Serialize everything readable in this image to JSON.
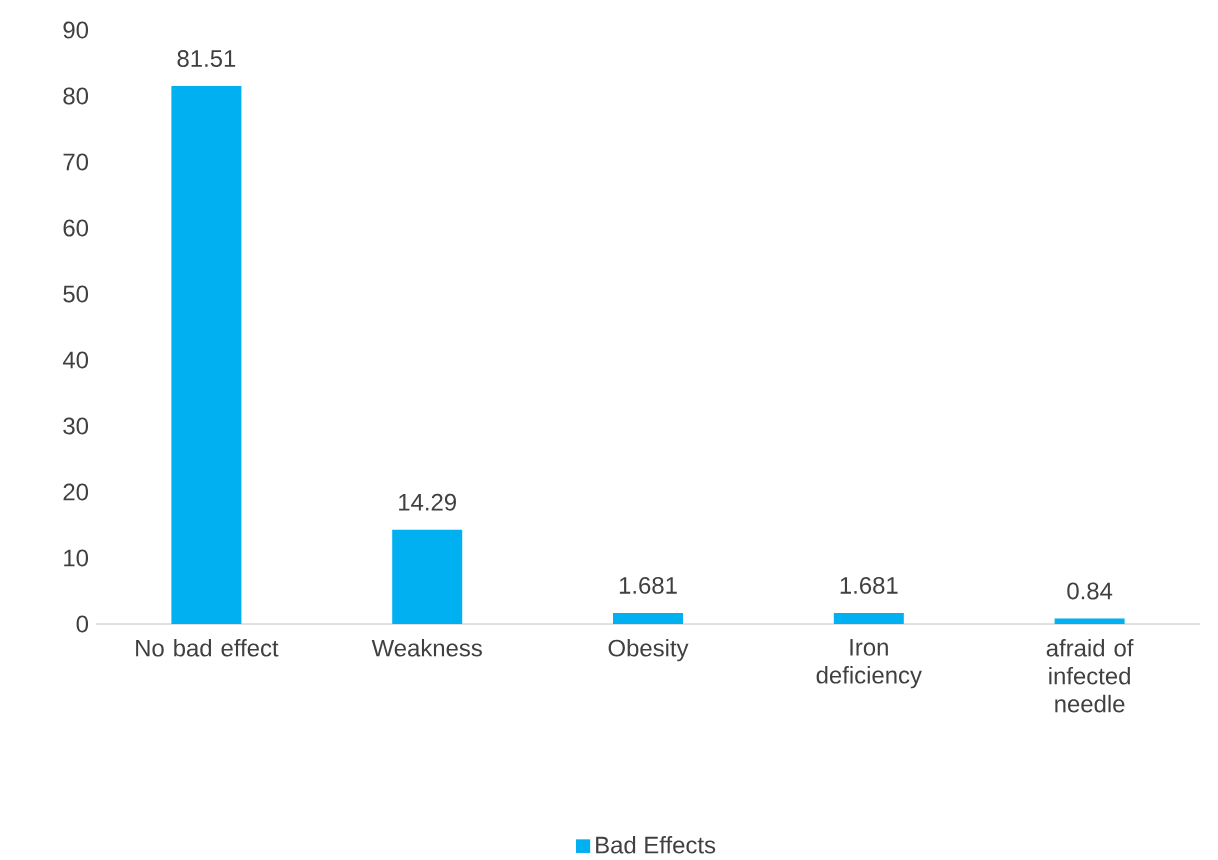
{
  "chart_data": {
    "type": "bar",
    "categories": [
      "No bad effect",
      "Weakness",
      "Obesity",
      "Iron deficiency",
      "afraid of infected needle"
    ],
    "series": [
      {
        "name": "Bad Effects",
        "color": "#00b0f0",
        "values": [
          81.51,
          14.29,
          1.681,
          1.681,
          0.84
        ],
        "value_labels": [
          "81.51",
          "14.29",
          "1.681",
          "1.681",
          "0.84"
        ]
      }
    ],
    "ylim": [
      0,
      90
    ],
    "yticks": [
      0,
      10,
      20,
      30,
      40,
      50,
      60,
      70,
      80,
      90
    ],
    "grid": false,
    "legend": "bottom"
  }
}
